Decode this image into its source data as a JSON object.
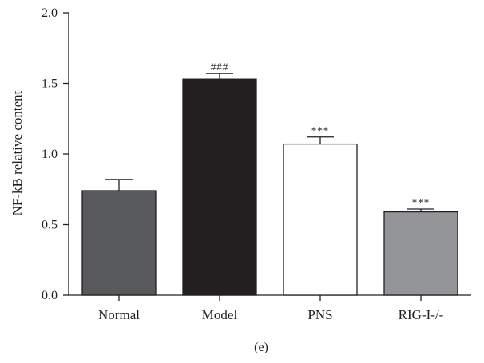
{
  "chart_data": {
    "type": "bar",
    "categories": [
      "Normal",
      "Model",
      "PNS",
      "RIG-I-/-"
    ],
    "values": [
      0.74,
      1.53,
      1.07,
      0.59
    ],
    "errors": [
      0.08,
      0.04,
      0.05,
      0.02
    ],
    "annotations": [
      "",
      "###",
      "***",
      "***"
    ],
    "bar_colors": [
      "#58595b",
      "#231f20",
      "#ffffff",
      "#939598"
    ],
    "title": "",
    "xlabel": "",
    "ylabel": "NF-kB relative content",
    "ylim": [
      0,
      2.0
    ],
    "yticks": [
      "0.0",
      "0.5",
      "1.0",
      "1.5",
      "2.0"
    ],
    "panel_label": "(e)",
    "grid": false,
    "legend": "none"
  }
}
